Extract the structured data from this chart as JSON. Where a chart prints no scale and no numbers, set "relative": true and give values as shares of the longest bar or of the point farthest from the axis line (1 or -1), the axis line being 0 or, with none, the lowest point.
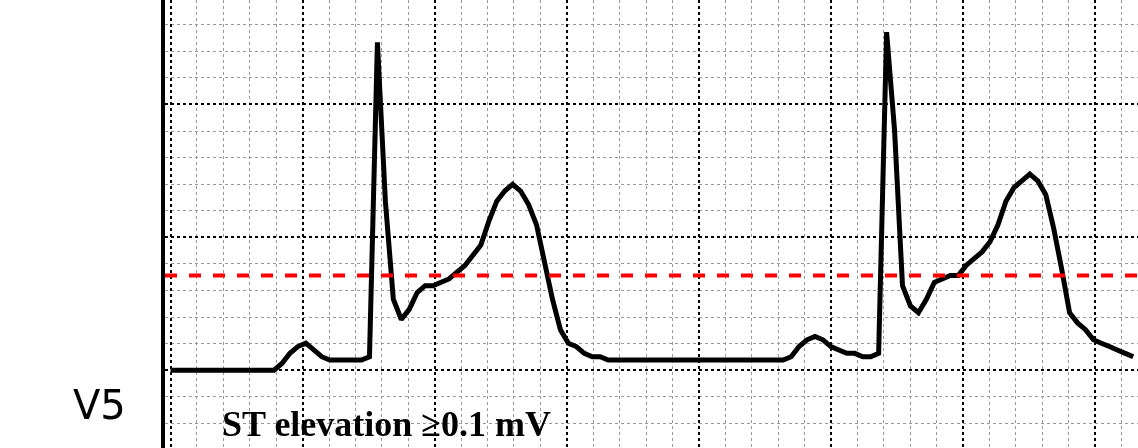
{
  "chart_data": {
    "type": "line",
    "relative": true,
    "grid": true,
    "marker": "none",
    "line_style": "solid",
    "annotations": [
      "V5",
      "ST elevation ≥0.1 mV"
    ],
    "categories": [
      null,
      null,
      null,
      null,
      null,
      null,
      null,
      null,
      null,
      null,
      null,
      null,
      null,
      null,
      null,
      null,
      null,
      null,
      null,
      null,
      null,
      null,
      null,
      null,
      null,
      null,
      null,
      null,
      null,
      null,
      null,
      null,
      null,
      null,
      null,
      null,
      null,
      null,
      null,
      null,
      null,
      null,
      null,
      null,
      null,
      null,
      null,
      null,
      null,
      null,
      null,
      null,
      null,
      null,
      null,
      null,
      null,
      null,
      null,
      null,
      null,
      null,
      null,
      null,
      null,
      null,
      null,
      null,
      null,
      null,
      null,
      null,
      null,
      null,
      null,
      null,
      null,
      null,
      null,
      null,
      null,
      null,
      null,
      null,
      null,
      null,
      null,
      null,
      null,
      null,
      null,
      null,
      null,
      null,
      null,
      null,
      null,
      null,
      null,
      null,
      null,
      null,
      null,
      null,
      null,
      null,
      null,
      null,
      null,
      null,
      null,
      null,
      null,
      null,
      null,
      null,
      null,
      null,
      null,
      null,
      null,
      null
    ],
    "series": [
      {
        "color": "#000000",
        "values": [
          0,
          0,
          0,
          0,
          0,
          0,
          0,
          0,
          0,
          0,
          0,
          0,
          0,
          0,
          0.02,
          0.05,
          0.07,
          0.08,
          0.06,
          0.04,
          0.03,
          0.03,
          0.03,
          0.03,
          0.03,
          0.04,
          0.97,
          0.5,
          0.21,
          0.15,
          0.18,
          0.23,
          0.25,
          0.25,
          0.26,
          0.27,
          0.29,
          0.31,
          0.34,
          0.37,
          0.44,
          0.5,
          0.53,
          0.55,
          0.53,
          0.49,
          0.43,
          0.32,
          0.21,
          0.12,
          0.08,
          0.07,
          0.05,
          0.04,
          0.04,
          0.03,
          0.03,
          0.03,
          0.03,
          0.03,
          0.03,
          0.03,
          0.03,
          0.03,
          0.03,
          0.03,
          0.03,
          0.03,
          0.03,
          0.03,
          0.03,
          0.03,
          0.03,
          0.03,
          0.03,
          0.03,
          0.03,
          0.03,
          0.04,
          0.07,
          0.09,
          0.1,
          0.09,
          0.07,
          0.06,
          0.05,
          0.05,
          0.04,
          0.04,
          0.05,
          1,
          0.71,
          0.25,
          0.19,
          0.17,
          0.21,
          0.26,
          0.27,
          0.28,
          0.28,
          0.31,
          0.33,
          0.35,
          0.38,
          0.43,
          0.5,
          0.54,
          0.56,
          0.58,
          0.56,
          0.52,
          0.42,
          0.3,
          0.17,
          0.14,
          0.12,
          0.09,
          0.08,
          0.07,
          0.06,
          0.05,
          0.04
        ]
      }
    ],
    "ref_lines": [
      {
        "axis": "y",
        "value": 0.28,
        "color": "#ff0000",
        "line_style": "dashed"
      }
    ]
  }
}
